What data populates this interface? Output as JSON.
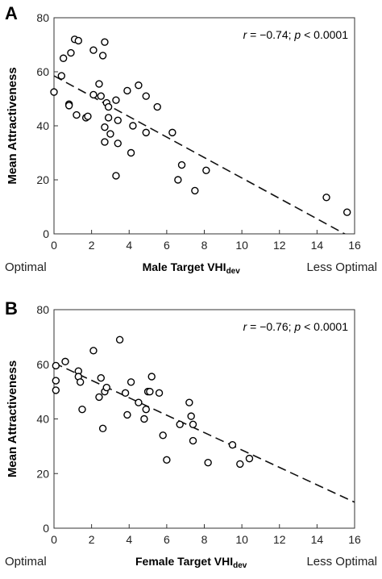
{
  "chart_data": [
    {
      "panel": "A",
      "type": "scatter",
      "xlabel_main": "Male Target VHI",
      "xlabel_sub": "dev",
      "ylabel": "Mean Attractiveness",
      "xlabel_left": "Optimal",
      "xlabel_right": "Less Optimal",
      "annotation": {
        "r": "r",
        "r_text": " = −0.74; ",
        "p": "p",
        "p_text": " < 0.0001"
      },
      "xlim": [
        0,
        16
      ],
      "ylim": [
        0,
        80
      ],
      "xticks": [
        0,
        2,
        4,
        6,
        8,
        10,
        12,
        14,
        16
      ],
      "yticks": [
        0,
        20,
        40,
        60,
        80
      ],
      "trend": {
        "x": [
          0,
          16
        ],
        "y": [
          58.5,
          -2
        ],
        "style": "dashed"
      },
      "points": [
        [
          0.0,
          52.5
        ],
        [
          0.4,
          58.5
        ],
        [
          0.5,
          65.0
        ],
        [
          0.8,
          48.0
        ],
        [
          0.8,
          47.5
        ],
        [
          0.9,
          67.0
        ],
        [
          1.1,
          72.0
        ],
        [
          1.2,
          44.0
        ],
        [
          1.3,
          71.5
        ],
        [
          1.7,
          43.0
        ],
        [
          1.8,
          43.5
        ],
        [
          2.1,
          51.5
        ],
        [
          2.1,
          68.0
        ],
        [
          2.4,
          55.5
        ],
        [
          2.5,
          51.0
        ],
        [
          2.6,
          66.0
        ],
        [
          2.7,
          71.0
        ],
        [
          2.7,
          39.5
        ],
        [
          2.7,
          34.0
        ],
        [
          2.8,
          48.5
        ],
        [
          2.9,
          47.0
        ],
        [
          2.9,
          43.0
        ],
        [
          3.0,
          37.0
        ],
        [
          3.3,
          49.5
        ],
        [
          3.3,
          21.5
        ],
        [
          3.4,
          42.0
        ],
        [
          3.4,
          33.5
        ],
        [
          3.9,
          53.0
        ],
        [
          4.1,
          30.0
        ],
        [
          4.2,
          40.0
        ],
        [
          4.5,
          55.0
        ],
        [
          4.9,
          51.0
        ],
        [
          4.9,
          37.5
        ],
        [
          5.5,
          47.0
        ],
        [
          6.3,
          37.5
        ],
        [
          6.6,
          20.0
        ],
        [
          6.8,
          25.5
        ],
        [
          7.5,
          16.0
        ],
        [
          8.1,
          23.5
        ],
        [
          14.5,
          13.5
        ],
        [
          15.6,
          8.0
        ]
      ]
    },
    {
      "panel": "B",
      "type": "scatter",
      "xlabel_main": "Female Target VHI",
      "xlabel_sub": "dev",
      "ylabel": "Mean Attractiveness",
      "xlabel_left": "Optimal",
      "xlabel_right": "Less Optimal",
      "annotation": {
        "r": "r",
        "r_text": " = −0.76; ",
        "p": "p",
        "p_text": " < 0.0001"
      },
      "xlim": [
        0,
        16
      ],
      "ylim": [
        0,
        80
      ],
      "xticks": [
        0,
        2,
        4,
        6,
        8,
        10,
        12,
        14,
        16
      ],
      "yticks": [
        0,
        20,
        40,
        60,
        80
      ],
      "trend": {
        "x": [
          0,
          16
        ],
        "y": [
          60.5,
          9.5
        ],
        "style": "dashed"
      },
      "points": [
        [
          0.1,
          59.5
        ],
        [
          0.1,
          54.0
        ],
        [
          0.1,
          50.5
        ],
        [
          0.6,
          61.0
        ],
        [
          1.3,
          57.5
        ],
        [
          1.3,
          55.5
        ],
        [
          1.4,
          53.5
        ],
        [
          1.5,
          43.5
        ],
        [
          2.1,
          65.0
        ],
        [
          2.4,
          48.0
        ],
        [
          2.5,
          55.0
        ],
        [
          2.6,
          36.5
        ],
        [
          2.7,
          50.0
        ],
        [
          2.8,
          51.5
        ],
        [
          3.5,
          69.0
        ],
        [
          3.8,
          49.5
        ],
        [
          3.9,
          41.5
        ],
        [
          4.1,
          53.5
        ],
        [
          4.5,
          46.0
        ],
        [
          4.8,
          40.0
        ],
        [
          4.9,
          43.5
        ],
        [
          5.0,
          50.0
        ],
        [
          5.1,
          50.0
        ],
        [
          5.2,
          55.5
        ],
        [
          5.6,
          49.5
        ],
        [
          5.8,
          34.0
        ],
        [
          6.0,
          25.0
        ],
        [
          6.7,
          38.0
        ],
        [
          7.2,
          46.0
        ],
        [
          7.3,
          41.0
        ],
        [
          7.4,
          38.0
        ],
        [
          7.4,
          32.0
        ],
        [
          8.2,
          24.0
        ],
        [
          9.5,
          30.5
        ],
        [
          9.9,
          23.5
        ],
        [
          10.4,
          25.5
        ]
      ]
    }
  ],
  "panels": {
    "a_letter": "A",
    "b_letter": "B"
  }
}
